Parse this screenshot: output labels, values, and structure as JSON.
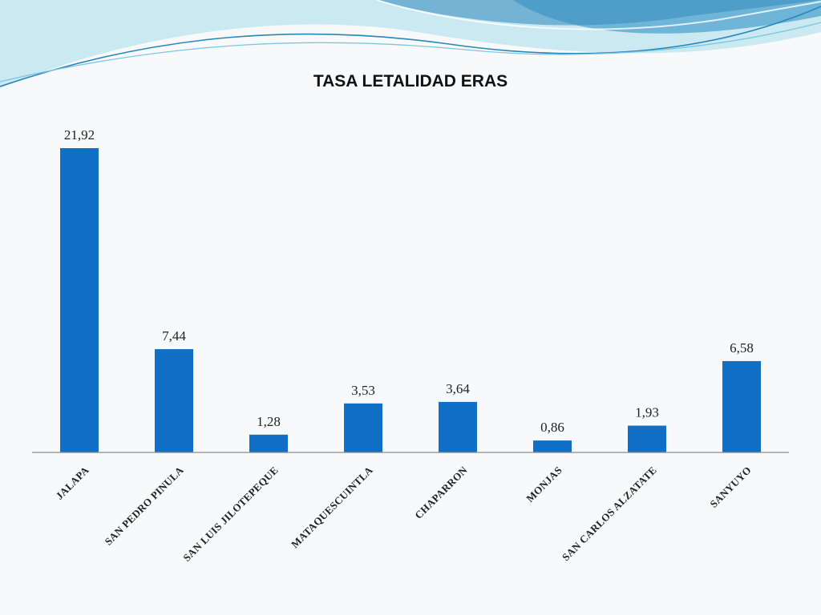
{
  "colors": {
    "bar": "#1170c6",
    "axis": "#8c8c8c",
    "background": "#f8f9fa",
    "wave_dark": "#5fb3d6",
    "wave_light": "#a6dcea"
  },
  "chart_data": {
    "type": "bar",
    "title": "TASA LETALIDAD ERAS",
    "categories": [
      "JALAPA",
      "SAN PEDRO PINULA",
      "SAN LUIS JILOTEPEQUE",
      "MATAQUESCUINTLA",
      "CHAPARRON",
      "MONJAS",
      "SAN CARLOS ALZATATE",
      "SANYUYO"
    ],
    "values": [
      21.92,
      7.44,
      1.28,
      3.53,
      3.64,
      0.86,
      1.93,
      6.58
    ],
    "data_labels": [
      "21,92",
      "7,44",
      "1,28",
      "3,53",
      "3,64",
      "0,86",
      "1,93",
      "6,58"
    ],
    "ylim": [
      0,
      21.92
    ],
    "grid": false,
    "legend": "none"
  }
}
